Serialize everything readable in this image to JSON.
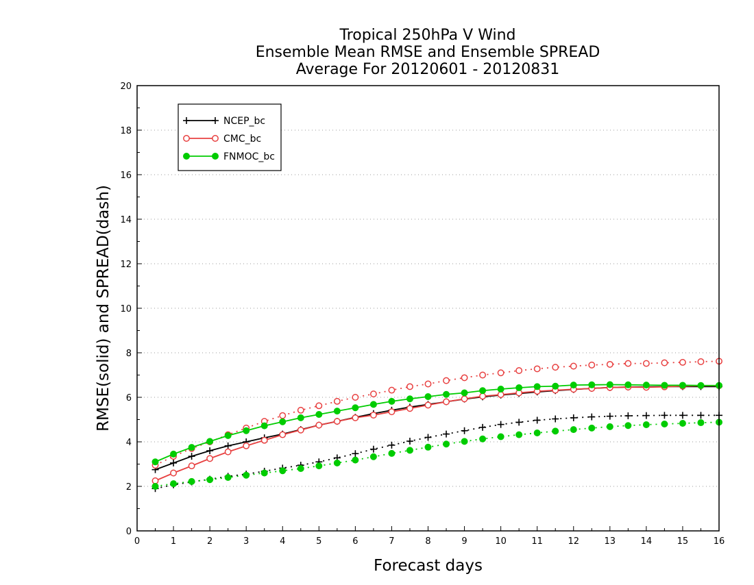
{
  "chart_data": {
    "type": "line",
    "title": [
      "Tropical 250hPa V Wind",
      "Ensemble Mean RMSE and Ensemble SPREAD",
      "Average For 20120601 - 20120831"
    ],
    "xlabel": "Forecast days",
    "ylabel": "RMSE(solid) and SPREAD(dash)",
    "xlim": [
      0,
      16
    ],
    "ylim": [
      0,
      20
    ],
    "xticks": [
      "0",
      "1",
      "2",
      "3",
      "4",
      "5",
      "6",
      "7",
      "8",
      "9",
      "10",
      "11",
      "12",
      "13",
      "14",
      "15",
      "16"
    ],
    "yticks": [
      "0",
      "2",
      "4",
      "6",
      "8",
      "10",
      "12",
      "14",
      "16",
      "18",
      "20"
    ],
    "grid": true,
    "legend_position": "top-left",
    "x": [
      0.5,
      1,
      1.5,
      2,
      2.5,
      3,
      3.5,
      4,
      4.5,
      5,
      5.5,
      6,
      6.5,
      7,
      7.5,
      8,
      8.5,
      9,
      9.5,
      10,
      10.5,
      11,
      11.5,
      12,
      12.5,
      13,
      13.5,
      14,
      14.5,
      15,
      15.5,
      16
    ],
    "series": [
      {
        "name": "NCEP_bc",
        "color": "#000000",
        "marker": "plus",
        "rmse": [
          2.75,
          3.05,
          3.35,
          3.6,
          3.82,
          4.0,
          4.18,
          4.35,
          4.55,
          4.75,
          4.92,
          5.1,
          5.27,
          5.42,
          5.56,
          5.68,
          5.8,
          5.92,
          6.02,
          6.1,
          6.17,
          6.24,
          6.3,
          6.35,
          6.4,
          6.44,
          6.46,
          6.47,
          6.48,
          6.48,
          6.48,
          6.48
        ],
        "spread": [
          1.9,
          2.07,
          2.2,
          2.32,
          2.45,
          2.55,
          2.68,
          2.82,
          2.95,
          3.1,
          3.28,
          3.47,
          3.67,
          3.85,
          4.03,
          4.2,
          4.35,
          4.5,
          4.65,
          4.78,
          4.88,
          4.97,
          5.03,
          5.08,
          5.12,
          5.15,
          5.17,
          5.18,
          5.19,
          5.19,
          5.19,
          5.19
        ]
      },
      {
        "name": "CMC_bc",
        "color": "#e84040",
        "marker": "open-circle",
        "rmse": [
          2.25,
          2.6,
          2.92,
          3.25,
          3.55,
          3.82,
          4.07,
          4.32,
          4.53,
          4.75,
          4.92,
          5.08,
          5.2,
          5.35,
          5.5,
          5.65,
          5.8,
          5.93,
          6.05,
          6.12,
          6.2,
          6.27,
          6.32,
          6.36,
          6.4,
          6.44,
          6.46,
          6.45,
          6.47,
          6.5,
          6.52,
          6.52
        ],
        "spread": [
          2.95,
          3.35,
          3.7,
          4.0,
          4.32,
          4.62,
          4.92,
          5.18,
          5.42,
          5.62,
          5.82,
          6.0,
          6.15,
          6.32,
          6.48,
          6.6,
          6.75,
          6.88,
          7.0,
          7.1,
          7.2,
          7.28,
          7.35,
          7.4,
          7.45,
          7.48,
          7.52,
          7.52,
          7.55,
          7.57,
          7.6,
          7.62
        ]
      },
      {
        "name": "FNMOC_bc",
        "color": "#00cc00",
        "marker": "filled-circle",
        "rmse": [
          3.1,
          3.45,
          3.75,
          4.02,
          4.28,
          4.5,
          4.72,
          4.9,
          5.08,
          5.23,
          5.38,
          5.53,
          5.68,
          5.82,
          5.93,
          6.03,
          6.13,
          6.2,
          6.3,
          6.37,
          6.43,
          6.48,
          6.5,
          6.55,
          6.56,
          6.57,
          6.56,
          6.55,
          6.54,
          6.54,
          6.53,
          6.53
        ],
        "spread": [
          2.0,
          2.12,
          2.22,
          2.3,
          2.4,
          2.5,
          2.6,
          2.7,
          2.8,
          2.92,
          3.05,
          3.18,
          3.33,
          3.48,
          3.62,
          3.76,
          3.9,
          4.02,
          4.13,
          4.23,
          4.32,
          4.4,
          4.48,
          4.55,
          4.62,
          4.68,
          4.73,
          4.77,
          4.8,
          4.83,
          4.86,
          4.88
        ]
      }
    ]
  }
}
